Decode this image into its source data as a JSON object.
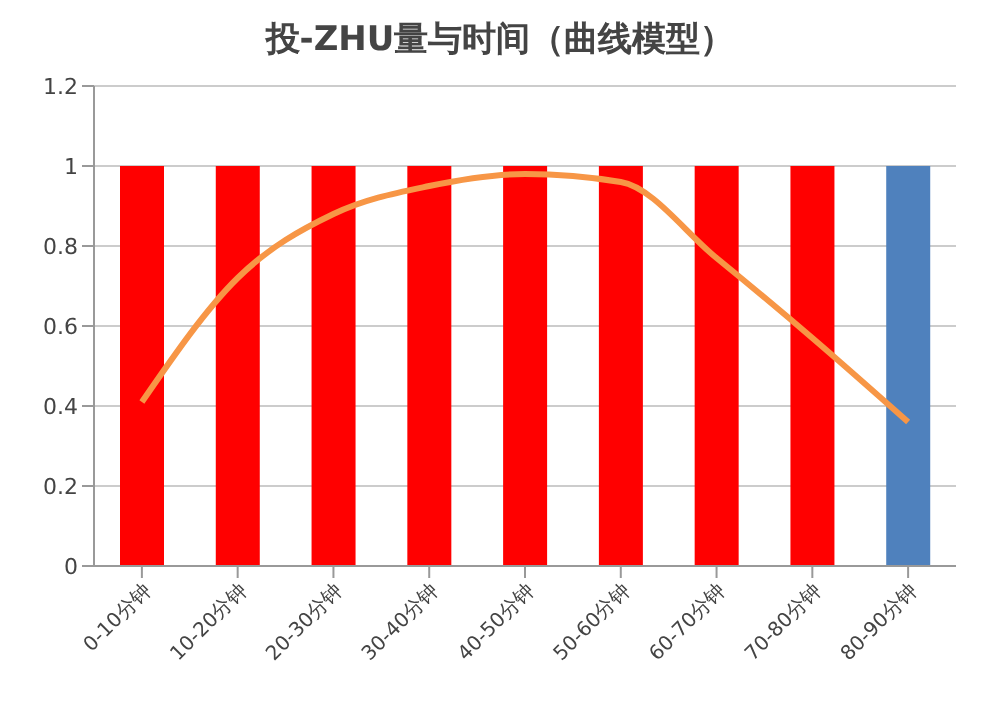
{
  "chart_data": {
    "type": "bar",
    "title": "投-ZHU量与时间（曲线模型）",
    "categories": [
      "0-10分钟",
      "10-20分钟",
      "20-30分钟",
      "30-40分钟",
      "40-50分钟",
      "50-60分钟",
      "60-70分钟",
      "70-80分钟",
      "80-90分钟"
    ],
    "series": [
      {
        "colors": [
          "#ff0000",
          "#ff0000",
          "#ff0000",
          "#ff0000",
          "#ff0000",
          "#ff0000",
          "#ff0000",
          "#ff0000",
          "#4f81bd"
        ],
        "values": [
          1,
          1,
          1,
          1,
          1,
          1,
          1,
          1,
          1
        ]
      },
      {
        "type": "line",
        "color": "#f79646",
        "values": [
          0.41,
          0.72,
          0.88,
          0.95,
          0.98,
          0.96,
          0.77,
          0.57,
          0.36
        ]
      }
    ],
    "ylim": [
      0,
      1.2
    ],
    "yticks": [
      0,
      0.2,
      0.4,
      0.6,
      0.8,
      1,
      1.2
    ],
    "grid": "y",
    "marker": "none",
    "legend": false
  }
}
